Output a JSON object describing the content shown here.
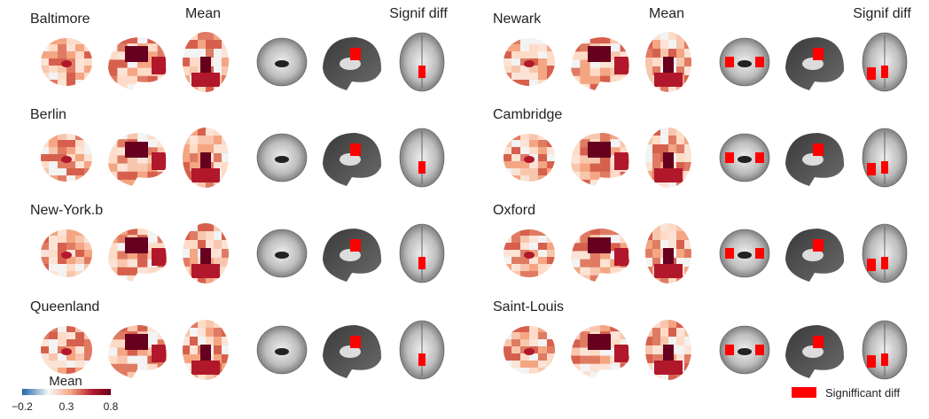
{
  "headers": {
    "mean_left": "Mean",
    "signif_left": "Signif diff",
    "mean_right": "Mean",
    "signif_right": "Signif diff"
  },
  "panels": [
    {
      "label": "Baltimore",
      "col": 0,
      "row": 0
    },
    {
      "label": "Berlin",
      "col": 0,
      "row": 1
    },
    {
      "label": "New-York.b",
      "col": 0,
      "row": 2
    },
    {
      "label": "Queenland",
      "col": 0,
      "row": 3
    },
    {
      "label": "Newark",
      "col": 1,
      "row": 0
    },
    {
      "label": "Cambridge",
      "col": 1,
      "row": 1
    },
    {
      "label": "Oxford",
      "col": 1,
      "row": 2
    },
    {
      "label": "Saint-Louis",
      "col": 1,
      "row": 3
    }
  ],
  "colorbar": {
    "title": "Mean",
    "ticks": [
      "−0.2",
      "0.3",
      "0.8"
    ],
    "min": -0.2,
    "max": 0.8,
    "colors": [
      "#2166ac",
      "#f7f7f7",
      "#67001f"
    ]
  },
  "legend": {
    "label": "Signifficant diff",
    "color": "#ff0000"
  },
  "colors": {
    "significant": "#ff0000",
    "brain_dark": "#4a4a4a",
    "brain_mid": "#8c8c8c",
    "brain_light": "#d9d9d9"
  }
}
